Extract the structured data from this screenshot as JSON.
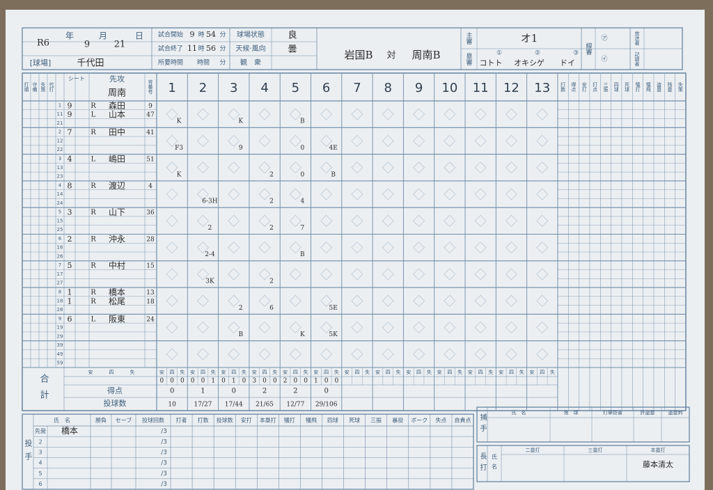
{
  "header": {
    "year": "R6",
    "year_unit": "年",
    "month": "9",
    "month_unit": "月",
    "day": "21",
    "day_unit": "日",
    "venue_label": "[球場]",
    "venue": "千代田",
    "start_label": "試合開始",
    "start_hour": "9",
    "start_minute": "54",
    "end_label": "試合終了",
    "end_hour": "11",
    "end_minute": "56",
    "duration_label": "所要時間",
    "duration_hour_unit": "時間",
    "hour_unit": "時",
    "minute_unit": "分",
    "field_label": "球場状態",
    "field": "良",
    "weather_label": "天候·風向",
    "weather": "曇",
    "spectators_label": "観　衆",
    "team_1": "岩国B",
    "vs": "対",
    "team_2": "周南B",
    "chief_umpire_label": "主審",
    "chief_umpire": "オ1",
    "base_umpire_label": "塁審",
    "base_marks": [
      "①",
      "②",
      "③"
    ],
    "base_umpires": [
      "コトト",
      "オキシゲ",
      "ドイ"
    ],
    "line_umpire_label": "線審",
    "line_marks": [
      "㋐",
      "㋑"
    ],
    "announcer_label": "放送者",
    "recorder_label": "記録者"
  },
  "lineup": {
    "small_labels": [
      "打順",
      "守備",
      "失策",
      "代打"
    ],
    "seat_label": "シート",
    "side_label": "先攻",
    "team": "周南",
    "number_label": "背番号",
    "innings": [
      1,
      2,
      3,
      4,
      5,
      6,
      7,
      8,
      9,
      10,
      11,
      12,
      13
    ],
    "stats_labels": [
      "打数",
      "得点",
      "安打",
      "打点",
      "三振",
      "四球",
      "死球",
      "犠打",
      "犠飛",
      "盗塁",
      "残塁",
      "失策"
    ],
    "players": [
      {
        "rows": [
          1,
          11,
          21
        ],
        "entries": [
          {
            "pos": "9",
            "hand": "R",
            "name": "森田",
            "number": "9"
          },
          {
            "pos": "9",
            "hand": "L",
            "name": "山本",
            "number": "47"
          }
        ],
        "plays": [
          "K",
          null,
          "K",
          null,
          "B",
          null
        ]
      },
      {
        "rows": [
          2,
          12,
          22
        ],
        "entries": [
          {
            "pos": "7",
            "hand": "R",
            "name": "田中",
            "number": "41"
          }
        ],
        "plays": [
          "F3",
          null,
          "9",
          null,
          "0",
          "4E"
        ]
      },
      {
        "rows": [
          3,
          13,
          23
        ],
        "entries": [
          {
            "pos": "4",
            "hand": "L",
            "name": "嶋田",
            "number": "51"
          }
        ],
        "plays": [
          "K",
          null,
          null,
          "2",
          "0",
          "B"
        ]
      },
      {
        "rows": [
          4,
          14,
          24
        ],
        "entries": [
          {
            "pos": "8",
            "hand": "R",
            "name": "渡辺",
            "number": "4"
          }
        ],
        "plays": [
          null,
          "6-3H",
          null,
          "2",
          "4",
          null
        ]
      },
      {
        "rows": [
          5,
          15,
          25
        ],
        "entries": [
          {
            "pos": "3",
            "hand": "R",
            "name": "山下",
            "number": "36"
          }
        ],
        "plays": [
          null,
          "2",
          null,
          "2",
          "7",
          null
        ]
      },
      {
        "rows": [
          6,
          16,
          26
        ],
        "entries": [
          {
            "pos": "2",
            "hand": "R",
            "name": "沖永",
            "number": "28"
          }
        ],
        "plays": [
          null,
          "2-4",
          null,
          null,
          "B",
          null
        ]
      },
      {
        "rows": [
          7,
          17,
          27
        ],
        "entries": [
          {
            "pos": "5",
            "hand": "R",
            "name": "中村",
            "number": "15"
          }
        ],
        "plays": [
          null,
          "3K",
          null,
          "2",
          null,
          null
        ]
      },
      {
        "rows": [
          8,
          18,
          28
        ],
        "entries": [
          {
            "pos": "1",
            "hand": "R",
            "name": "橋本",
            "number": "13"
          },
          {
            "pos": "1",
            "hand": "R",
            "name": "松尾",
            "number": "18"
          }
        ],
        "plays": [
          null,
          null,
          "2",
          "6",
          null,
          "5E"
        ]
      },
      {
        "rows": [
          9,
          19,
          29
        ],
        "entries": [
          {
            "pos": "6",
            "hand": "L",
            "name": "阪東",
            "number": "24"
          }
        ],
        "plays": [
          null,
          null,
          "B",
          null,
          "K",
          "5K"
        ]
      }
    ],
    "extra_rows": [
      39,
      49,
      59
    ]
  },
  "totals": {
    "label": "合計",
    "sub_labels": [
      "安",
      "四",
      "失"
    ],
    "runs_label": "得点",
    "pitches_label": "投球数",
    "hits": [
      [
        0,
        0,
        0
      ],
      [
        0,
        0,
        1
      ],
      [
        0,
        1,
        0
      ],
      [
        3,
        0,
        0
      ],
      [
        2,
        0,
        0
      ],
      [
        1,
        0,
        0
      ]
    ],
    "runs": [
      0,
      1,
      0,
      2,
      2,
      0
    ],
    "pitches": [
      "10",
      "17/27",
      "17/44",
      "21/65",
      "12/77",
      "29/106"
    ]
  },
  "pitching": {
    "title": "投手",
    "headers": [
      "氏　名",
      "勝負",
      "セーブ",
      "投球回数",
      "打者",
      "打数",
      "投球数",
      "安打",
      "本塁打",
      "犠打",
      "犠飛",
      "四球",
      "死球",
      "三振",
      "暴投",
      "ボーク",
      "失点",
      "自責点"
    ],
    "rows": [
      {
        "order": "先発",
        "name": "橋本",
        "innings": "/3"
      },
      {
        "order": "2",
        "innings": "/3"
      },
      {
        "order": "3",
        "innings": "/3"
      },
      {
        "order": "4",
        "innings": "/3"
      },
      {
        "order": "5",
        "innings": "/3"
      },
      {
        "order": "6",
        "innings": "/3"
      }
    ]
  },
  "catcher": {
    "title": "捕手",
    "headers": [
      "氏　名",
      "逸　球",
      "打撃妨害",
      "許盗塁",
      "盗塁刺"
    ]
  },
  "long_hits": {
    "title": "長打",
    "name_label": "氏名",
    "headers": [
      "二塁打",
      "三塁打",
      "本塁打"
    ],
    "home_run": "藤本清太"
  }
}
